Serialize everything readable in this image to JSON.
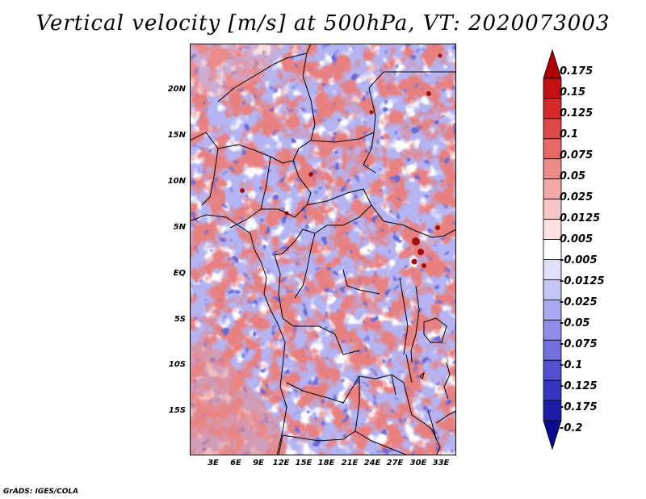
{
  "title": "Vertical velocity [m/s] at 500hPa, VT: 2020073003",
  "map": {
    "lat_range": [
      -20,
      24.5
    ],
    "lon_range": [
      0,
      35.5
    ],
    "lat_labels": [
      "20N",
      "15N",
      "10N",
      "5N",
      "EQ",
      "5S",
      "10S",
      "15S"
    ],
    "lat_values": [
      20,
      15,
      10,
      5,
      0,
      -5,
      -10,
      -15
    ],
    "lon_labels": [
      "3E",
      "6E",
      "9E",
      "12E",
      "15E",
      "18E",
      "21E",
      "24E",
      "27E",
      "30E",
      "33E"
    ],
    "lon_values": [
      3,
      6,
      9,
      12,
      15,
      18,
      21,
      24,
      27,
      30,
      33
    ]
  },
  "colorbar": {
    "labels": [
      "0.175",
      "0.15",
      "0.125",
      "0.1",
      "0.075",
      "0.05",
      "0.025",
      "0.0125",
      "0.005",
      "-0.005",
      "-0.0125",
      "-0.025",
      "-0.05",
      "-0.075",
      "-0.1",
      "-0.125",
      "-0.175",
      "-0.2"
    ],
    "colors": [
      "#b00000",
      "#c41010",
      "#d42a2a",
      "#e04848",
      "#e86868",
      "#ef8a8a",
      "#f4a8a8",
      "#f8c6c6",
      "#fce2e2",
      "#ffffff",
      "#e0e0fb",
      "#c6c6f6",
      "#aaaaf0",
      "#8e8ee8",
      "#7070de",
      "#5050d0",
      "#3434bc",
      "#1c1ca8",
      "#0a0a90"
    ]
  },
  "credit": "GrADS: IGES/COLA"
}
